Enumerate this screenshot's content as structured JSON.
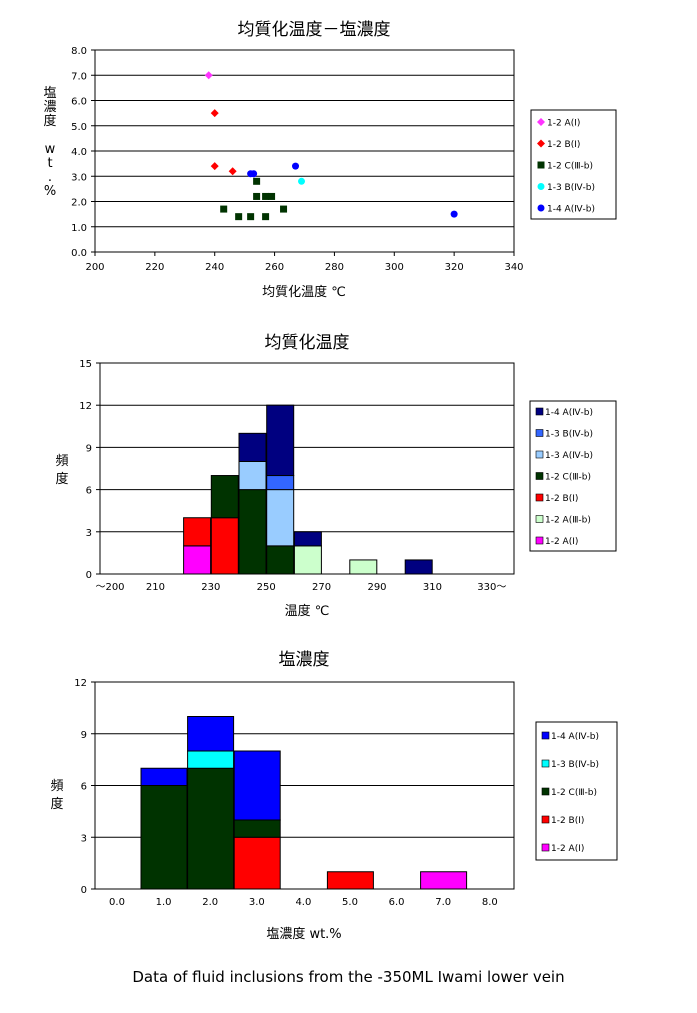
{
  "caption": "Data of fluid inclusions  from  the -350ML Iwami lower vein",
  "chart_data": [
    {
      "type": "scatter",
      "title": "均質化温度－塩濃度",
      "xlabel": "均質化温度 ℃",
      "ylabel": [
        "塩",
        "濃",
        "度",
        "",
        "w",
        "t",
        ".",
        "%"
      ],
      "xlim": [
        200,
        340
      ],
      "ylim": [
        0,
        8
      ],
      "xticks": [
        "200",
        "220",
        "240",
        "260",
        "280",
        "300",
        "320",
        "340"
      ],
      "yticks": [
        "0.0",
        "1.0",
        "2.0",
        "3.0",
        "4.0",
        "5.0",
        "6.0",
        "7.0",
        "8.0"
      ],
      "grid": "horizontal",
      "legend_position": "right",
      "series": [
        {
          "name": "1-2 A(Ⅰ)",
          "color": "#ff33ff",
          "marker": "diamond",
          "points": [
            [
              238,
              7.0
            ]
          ]
        },
        {
          "name": "1-2 B(Ⅰ)",
          "color": "#ff0000",
          "marker": "diamond",
          "points": [
            [
              240,
              5.5
            ],
            [
              240,
              3.4
            ],
            [
              246,
              3.2
            ]
          ]
        },
        {
          "name": "1-2 C(Ⅲ-b)",
          "color": "#003300",
          "marker": "square",
          "points": [
            [
              243,
              1.7
            ],
            [
              248,
              1.4
            ],
            [
              252,
              1.4
            ],
            [
              254,
              2.8
            ],
            [
              254,
              2.2
            ],
            [
              257,
              1.4
            ],
            [
              257,
              2.2
            ],
            [
              259,
              2.2
            ],
            [
              263,
              1.7
            ]
          ]
        },
        {
          "name": "1-3 B(Ⅳ-b)",
          "color": "#00ffff",
          "marker": "circle",
          "points": [
            [
              269,
              2.8
            ]
          ]
        },
        {
          "name": "1-4 A(Ⅳ-b)",
          "color": "#0000ff",
          "marker": "circle",
          "points": [
            [
              252,
              3.1
            ],
            [
              253,
              3.1
            ],
            [
              267,
              3.4
            ],
            [
              320,
              1.5
            ]
          ]
        }
      ]
    },
    {
      "type": "bar",
      "stacked": true,
      "title": "均質化温度",
      "xlabel": "温度 ℃",
      "ylabel": [
        "頻",
        "度"
      ],
      "ylim": [
        0,
        15
      ],
      "yticks": [
        "0",
        "3",
        "6",
        "9",
        "12",
        "15"
      ],
      "xticks": [
        "～200",
        "210",
        "230",
        "250",
        "270",
        "290",
        "310",
        "330～"
      ],
      "categories": [
        "200-210",
        "210-220",
        "220-230",
        "230-240",
        "240-250",
        "250-260",
        "260-270",
        "270-280",
        "280-290",
        "290-300",
        "300-310",
        "310-320",
        "320-330"
      ],
      "grid": "horizontal",
      "legend_position": "right",
      "series": [
        {
          "name": "1-2 A(Ⅰ)",
          "color": "#ff00ff",
          "values": [
            0,
            0,
            0,
            2,
            0,
            0,
            0,
            0,
            0,
            0,
            0,
            0,
            0
          ]
        },
        {
          "name": "1-2 A(Ⅲ-b)",
          "color": "#ccffcc",
          "values": [
            0,
            0,
            0,
            0,
            0,
            0,
            0,
            2,
            0,
            1,
            0,
            0,
            0
          ]
        },
        {
          "name": "1-2 B(Ⅰ)",
          "color": "#ff0000",
          "values": [
            0,
            0,
            0,
            2,
            4,
            0,
            0,
            0,
            0,
            0,
            0,
            0,
            0
          ]
        },
        {
          "name": "1-2 C(Ⅲ-b)",
          "color": "#003300",
          "values": [
            0,
            0,
            0,
            0,
            3,
            6,
            2,
            0,
            0,
            0,
            0,
            0,
            0
          ]
        },
        {
          "name": "1-3 A(Ⅳ-b)",
          "color": "#99ccff",
          "values": [
            0,
            0,
            0,
            0,
            0,
            2,
            4,
            0,
            0,
            0,
            0,
            0,
            0
          ]
        },
        {
          "name": "1-3 B(Ⅳ-b)",
          "color": "#3366ff",
          "values": [
            0,
            0,
            0,
            0,
            0,
            0,
            1,
            0,
            0,
            0,
            0,
            0,
            0
          ]
        },
        {
          "name": "1-4 A(Ⅳ-b)",
          "color": "#000080",
          "values": [
            0,
            0,
            0,
            0,
            0,
            2,
            5,
            1,
            0,
            0,
            0,
            1,
            0
          ]
        }
      ]
    },
    {
      "type": "bar",
      "stacked": true,
      "title": "塩濃度",
      "xlabel": "塩濃度 wt.%",
      "ylabel": [
        "頻",
        "度"
      ],
      "ylim": [
        0,
        12
      ],
      "yticks": [
        "0",
        "3",
        "6",
        "9",
        "12"
      ],
      "xticks": [
        "0.0",
        "1.0",
        "2.0",
        "3.0",
        "4.0",
        "5.0",
        "6.0",
        "7.0",
        "8.0"
      ],
      "categories": [
        "0.5",
        "1.0",
        "2.0",
        "3.0",
        "4.0",
        "5.0",
        "6.0",
        "7.0",
        "8.0"
      ],
      "grid": "horizontal",
      "legend_position": "right",
      "series": [
        {
          "name": "1-2 A(Ⅰ)",
          "color": "#ff00ff",
          "values": [
            0,
            0,
            0,
            0,
            0,
            0,
            0,
            1,
            0
          ]
        },
        {
          "name": "1-2 B(Ⅰ)",
          "color": "#ff0000",
          "values": [
            0,
            0,
            0,
            3,
            0,
            1,
            0,
            0,
            0
          ]
        },
        {
          "name": "1-2 C(Ⅲ-b)",
          "color": "#003300",
          "values": [
            0,
            6,
            7,
            1,
            0,
            0,
            0,
            0,
            0
          ]
        },
        {
          "name": "1-3 B(Ⅳ-b)",
          "color": "#00ffff",
          "values": [
            0,
            0,
            1,
            0,
            0,
            0,
            0,
            0,
            0
          ]
        },
        {
          "name": "1-4 A(Ⅳ-b)",
          "color": "#0000ff",
          "values": [
            0,
            1,
            2,
            4,
            0,
            0,
            0,
            0,
            0
          ]
        }
      ]
    }
  ]
}
